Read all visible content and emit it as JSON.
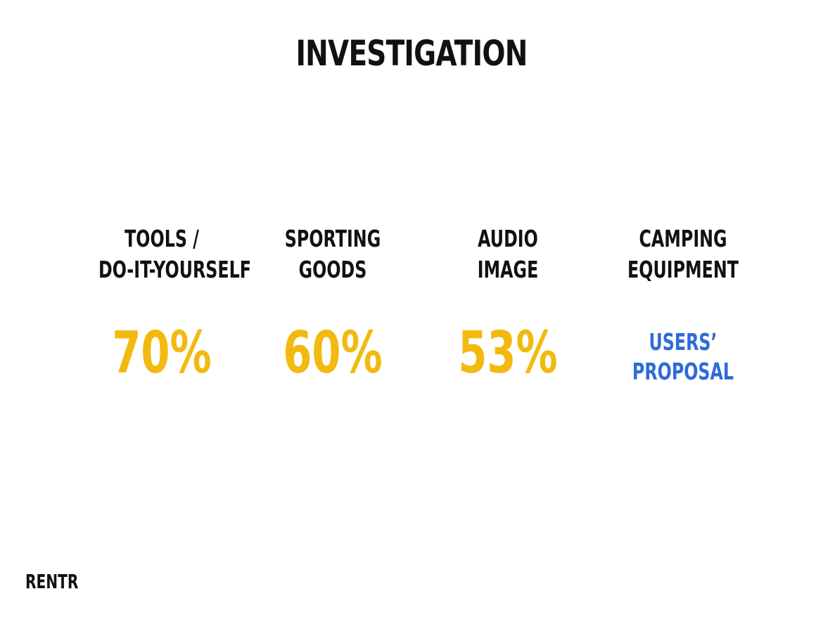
{
  "title": "INVESTIGATION",
  "colors": {
    "text": "#111111",
    "accent_yellow": "#F2B90F",
    "accent_blue": "#2E6BD8"
  },
  "categories": [
    {
      "label_lines": [
        "TOOLS /",
        "DO-IT-YOURSELF"
      ],
      "value": "70%"
    },
    {
      "label_lines": [
        "SPORTING",
        "GOODS"
      ],
      "value": "60%"
    },
    {
      "label_lines": [
        "AUDIO",
        "IMAGE"
      ],
      "value": "53%"
    },
    {
      "label_lines": [
        "CAMPING",
        "EQUIPMENT"
      ],
      "value_lines": [
        "USERS’",
        "PROPOSAL"
      ]
    }
  ],
  "footer": {
    "brand": "RENTR"
  }
}
